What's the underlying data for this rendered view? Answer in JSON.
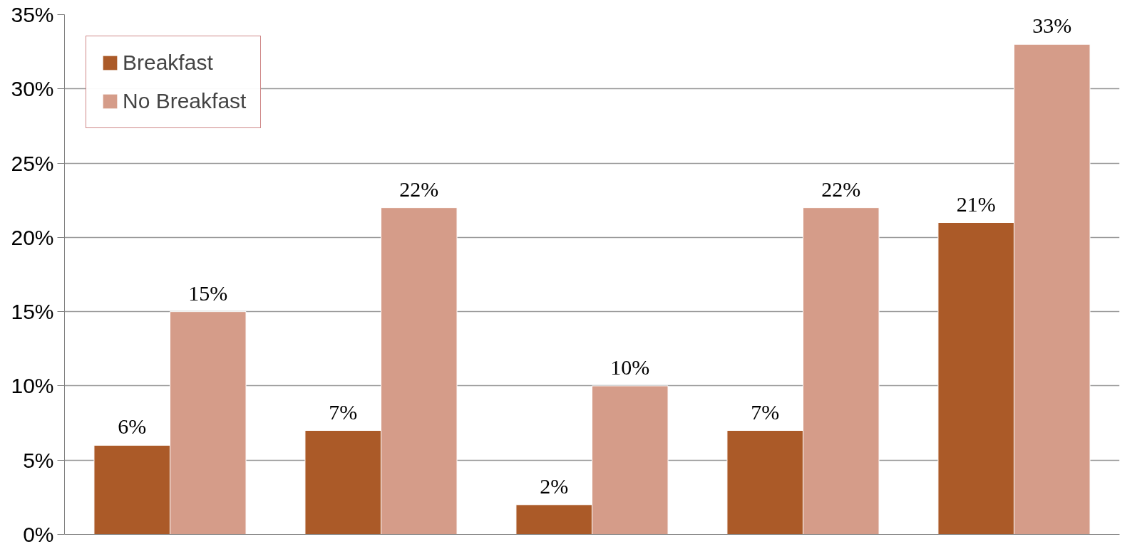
{
  "chart_data": {
    "type": "bar",
    "categories": [
      null,
      null,
      null,
      null,
      null
    ],
    "series": [
      {
        "name": "Breakfast",
        "color": "#ab5a28",
        "values": [
          6,
          7,
          2,
          7,
          21
        ],
        "value_labels": [
          "6%",
          "7%",
          "2%",
          "7%",
          "21%"
        ]
      },
      {
        "name": "No Breakfast",
        "color": "#d59c89",
        "values": [
          15,
          22,
          10,
          22,
          33
        ],
        "value_labels": [
          "15%",
          "22%",
          "10%",
          "22%",
          "33%"
        ]
      }
    ],
    "ylim": [
      0,
      35
    ],
    "yticks": [
      {
        "value": 0,
        "label": "0%"
      },
      {
        "value": 5,
        "label": "5%"
      },
      {
        "value": 10,
        "label": "10%"
      },
      {
        "value": 15,
        "label": "15%"
      },
      {
        "value": 20,
        "label": "20%"
      },
      {
        "value": 25,
        "label": "25%"
      },
      {
        "value": 30,
        "label": "30%"
      },
      {
        "value": 35,
        "label": "35%"
      }
    ],
    "grid": "y",
    "legend": "top left",
    "tick_labels": "y"
  }
}
